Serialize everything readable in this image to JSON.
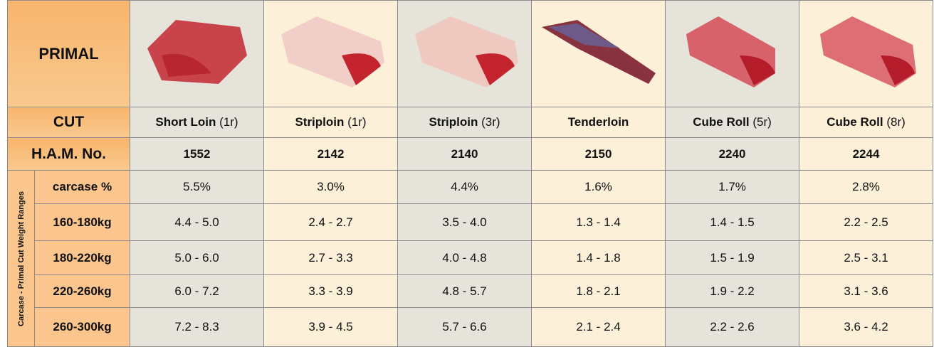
{
  "table": {
    "primal_label": "PRIMAL",
    "cut_label": "CUT",
    "ham_label": "H.A.M. No.",
    "side_label": "Carcase - Primal Cut Weight Ranges",
    "cuts": [
      {
        "name": "Short Loin",
        "note": "(1r)",
        "ham": 1552
      },
      {
        "name": "Striploin",
        "note": "(1r)",
        "ham": 2142
      },
      {
        "name": "Striploin",
        "note": "(3r)",
        "ham": 2140
      },
      {
        "name": "Tenderloin",
        "ham": 2150
      },
      {
        "name": "Cube Roll",
        "note": "(5r)",
        "ham": 2240
      },
      {
        "name": "Cube Roll",
        "note": "(8r)",
        "ham": 2244
      }
    ],
    "rows": [
      {
        "label": "carcase %",
        "values": [
          "5.5%",
          "3.0%",
          "4.4%",
          "1.6%",
          "1.7%",
          "2.8%"
        ]
      },
      {
        "label": "160-180kg",
        "values": [
          "4.4 - 5.0",
          "2.4 - 2.7",
          "3.5 - 4.0",
          "1.3 - 1.4",
          "1.4 - 1.5",
          "2.2 - 2.5"
        ]
      },
      {
        "label": "180-220kg",
        "values": [
          "5.0 - 6.0",
          "2.7 - 3.3",
          "4.0 - 4.8",
          "1.4 - 1.8",
          "1.5 - 1.9",
          "2.5 - 3.1"
        ]
      },
      {
        "label": "220-260kg",
        "values": [
          "6.0 - 7.2",
          "3.3 - 3.9",
          "4.8 - 5.7",
          "1.8 - 2.1",
          "1.9 - 2.2",
          "3.1 - 3.6"
        ]
      },
      {
        "label": "260-300kg",
        "values": [
          "7.2 - 8.3",
          "3.9 - 4.5",
          "5.7 - 6.6",
          "2.1 - 2.4",
          "2.2 - 2.6",
          "3.6 - 4.2"
        ]
      }
    ]
  }
}
